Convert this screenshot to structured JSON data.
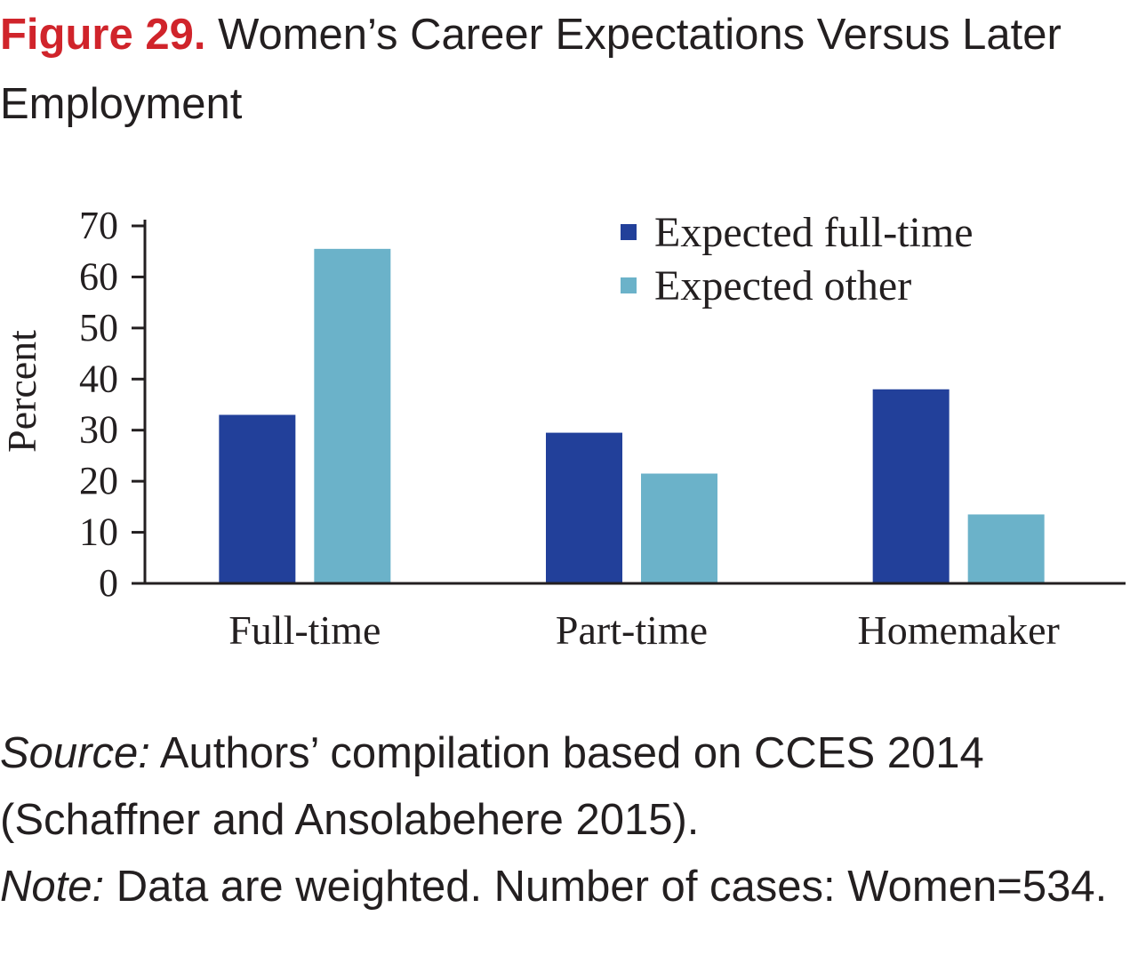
{
  "figure": {
    "number": "Figure 29.",
    "title": "Women’s Career Expectations Versus Later Employment"
  },
  "source_label": "Source:",
  "source_text": "Authors’ compilation based on CCES 2014 (Schaffner and Ansolabehere 2015).",
  "note_label": "Note:",
  "note_text": "Data are weighted. Number of cases: Women=534.",
  "colors": {
    "series1": "#22409a",
    "series2": "#6bb2c9",
    "figure_label": "#d0242b"
  },
  "chart_data": {
    "type": "bar",
    "categories": [
      "Full-time",
      "Part-time",
      "Homemaker"
    ],
    "series": [
      {
        "name": "Expected full-time",
        "values": [
          33,
          29.5,
          38
        ]
      },
      {
        "name": "Expected other",
        "values": [
          65.5,
          21.5,
          13.5
        ]
      }
    ],
    "ylabel": "Percent",
    "xlabel": "",
    "ylim": [
      0,
      70
    ],
    "yticks": [
      0,
      10,
      20,
      30,
      40,
      50,
      60,
      70
    ],
    "grid": false,
    "legend": "top-right"
  }
}
